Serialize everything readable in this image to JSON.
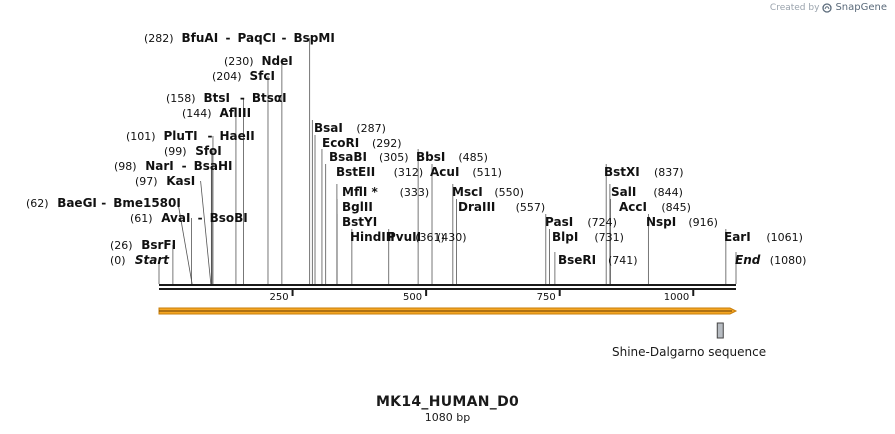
{
  "app": {
    "credit": "Created by",
    "brand": "SnapGene"
  },
  "sequence": {
    "name": "MK14_HUMAN_D0",
    "length_label": "1080 bp",
    "length": 1080
  },
  "colors": {
    "backbone": "#1a1a1a",
    "feature_fill": "#f5a623",
    "feature_stroke": "#c77d0a",
    "sd_fill": "#b7bcc2",
    "sd_stroke": "#444444",
    "line": "#555555"
  },
  "ticks": [
    {
      "pos": 250,
      "label": "250"
    },
    {
      "pos": 500,
      "label": "500"
    },
    {
      "pos": 750,
      "label": "750"
    },
    {
      "pos": 1000,
      "label": "1000"
    }
  ],
  "sites": [
    {
      "names": [
        "Start"
      ],
      "pos": 0,
      "label": "(0)",
      "end": true
    },
    {
      "names": [
        "BsrFI"
      ],
      "pos": 26,
      "label": "(26)"
    },
    {
      "names": [
        "AvaI",
        "BsoBI"
      ],
      "pos": 61,
      "label": "(61)"
    },
    {
      "names": [
        "BaeGI",
        "Bme1580I"
      ],
      "pos": 62,
      "label": "(62)"
    },
    {
      "names": [
        "KasI"
      ],
      "pos": 97,
      "label": "(97)"
    },
    {
      "names": [
        "NarI",
        "BsaHI"
      ],
      "pos": 98,
      "label": "(98)"
    },
    {
      "names": [
        "SfoI"
      ],
      "pos": 99,
      "label": "(99)"
    },
    {
      "names": [
        "PluTI",
        "HaeII"
      ],
      "pos": 101,
      "label": "(101)"
    },
    {
      "names": [
        "AflIII"
      ],
      "pos": 144,
      "label": "(144)"
    },
    {
      "names": [
        "BtsI",
        "BtsαI"
      ],
      "pos": 158,
      "label": "(158)"
    },
    {
      "names": [
        "SfcI"
      ],
      "pos": 204,
      "label": "(204)"
    },
    {
      "names": [
        "NdeI"
      ],
      "pos": 230,
      "label": "(230)"
    },
    {
      "names": [
        "BfuAI",
        "PaqCI",
        "BspMI"
      ],
      "pos": 282,
      "label": "(282)"
    },
    {
      "names": [
        "BsaI"
      ],
      "pos": 287,
      "label": "(287)"
    },
    {
      "names": [
        "EcoRI"
      ],
      "pos": 292,
      "label": "(292)"
    },
    {
      "names": [
        "BsaBI"
      ],
      "pos": 305,
      "label": "(305)"
    },
    {
      "names": [
        "BstEII"
      ],
      "pos": 312,
      "label": "(312)"
    },
    {
      "names": [
        "MflI *"
      ],
      "pos": 333,
      "label": "(333)"
    },
    {
      "names": [
        "BglII"
      ],
      "pos": 333,
      "label": ""
    },
    {
      "names": [
        "BstYI"
      ],
      "pos": 333,
      "label": ""
    },
    {
      "names": [
        "HindIII"
      ],
      "pos": 361,
      "label": "(361)"
    },
    {
      "names": [
        "PvuII"
      ],
      "pos": 430,
      "label": "(430)"
    },
    {
      "names": [
        "BbsI"
      ],
      "pos": 485,
      "label": "(485)"
    },
    {
      "names": [
        "AcuI"
      ],
      "pos": 511,
      "label": "(511)"
    },
    {
      "names": [
        "MscI"
      ],
      "pos": 550,
      "label": "(550)"
    },
    {
      "names": [
        "DraIII"
      ],
      "pos": 557,
      "label": "(557)"
    },
    {
      "names": [
        "PasI"
      ],
      "pos": 724,
      "label": "(724)"
    },
    {
      "names": [
        "BlpI"
      ],
      "pos": 731,
      "label": "(731)"
    },
    {
      "names": [
        "BseRI"
      ],
      "pos": 741,
      "label": "(741)"
    },
    {
      "names": [
        "BstXI"
      ],
      "pos": 837,
      "label": "(837)"
    },
    {
      "names": [
        "SalI"
      ],
      "pos": 844,
      "label": "(844)"
    },
    {
      "names": [
        "AccI"
      ],
      "pos": 845,
      "label": "(845)"
    },
    {
      "names": [
        "NspI"
      ],
      "pos": 916,
      "label": "(916)"
    },
    {
      "names": [
        "EarI"
      ],
      "pos": 1061,
      "label": "(1061)"
    },
    {
      "names": [
        "End"
      ],
      "pos": 1080,
      "label": "(1080)",
      "end": true
    }
  ],
  "features": [
    {
      "name": "MK14_HUMAN_D0 ORF",
      "start": 0,
      "end": 1080,
      "direction": "forward"
    },
    {
      "name": "Shine-Dalgarno sequence",
      "start": 1000,
      "end": 1007,
      "label": "Shine-Dalgarno sequence"
    }
  ]
}
